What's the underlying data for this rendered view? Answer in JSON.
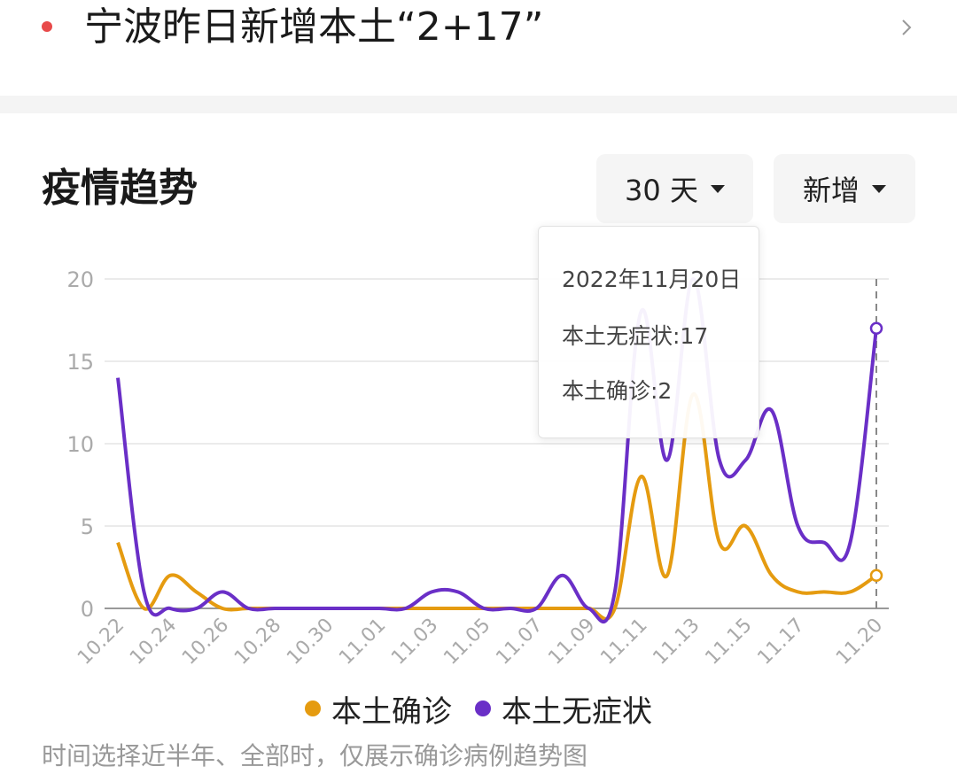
{
  "news": {
    "title": "宁波昨日新增本土“2+17”",
    "dot_color": "#e84a4a"
  },
  "section": {
    "title": "疫情趋势",
    "range_dropdown": "30 天",
    "mode_dropdown": "新增"
  },
  "tooltip": {
    "date": "2022年11月20日",
    "lines": [
      "本土无症状:17",
      "本土确诊:2"
    ]
  },
  "legend": [
    {
      "name": "本土确诊",
      "color": "#e59b10"
    },
    {
      "name": "本土无症状",
      "color": "#6a2fc7"
    }
  ],
  "footnote": "时间选择近半年、全部时，仅展示确诊病例趋势图",
  "chart_data": {
    "type": "line",
    "title": "",
    "xlabel": "",
    "ylabel": "",
    "x": [
      "10.22",
      "10.23",
      "10.24",
      "10.25",
      "10.26",
      "10.27",
      "10.28",
      "10.29",
      "10.30",
      "10.31",
      "11.01",
      "11.02",
      "11.03",
      "11.04",
      "11.05",
      "11.06",
      "11.07",
      "11.08",
      "11.09",
      "11.10",
      "11.11",
      "11.12",
      "11.13",
      "11.14",
      "11.15",
      "11.16",
      "11.17",
      "11.18",
      "11.19",
      "11.20"
    ],
    "tick_labels": [
      "10.22",
      "10.24",
      "10.26",
      "10.28",
      "10.30",
      "11.01",
      "11.03",
      "11.05",
      "11.07",
      "11.09",
      "11.11",
      "11.13",
      "11.15",
      "11.17",
      "11.20"
    ],
    "y_ticks": [
      0,
      5,
      10,
      15,
      20
    ],
    "ylim": [
      0,
      20
    ],
    "grid": true,
    "series": [
      {
        "name": "本土确诊",
        "color": "#e59b10",
        "values": [
          4,
          0,
          2,
          1,
          0,
          0,
          0,
          0,
          0,
          0,
          0,
          0,
          0,
          0,
          0,
          0,
          0,
          0,
          0,
          0,
          8,
          2,
          13,
          4,
          5,
          2,
          1,
          1,
          1,
          2
        ]
      },
      {
        "name": "本土无症状",
        "color": "#6a2fc7",
        "values": [
          14,
          1,
          0,
          0,
          1,
          0,
          0,
          0,
          0,
          0,
          0,
          0,
          1,
          1,
          0,
          0,
          0,
          2,
          0,
          1,
          18,
          9,
          20,
          9,
          9,
          12,
          5,
          4,
          4,
          17
        ]
      }
    ],
    "highlight_x": "11.20"
  }
}
